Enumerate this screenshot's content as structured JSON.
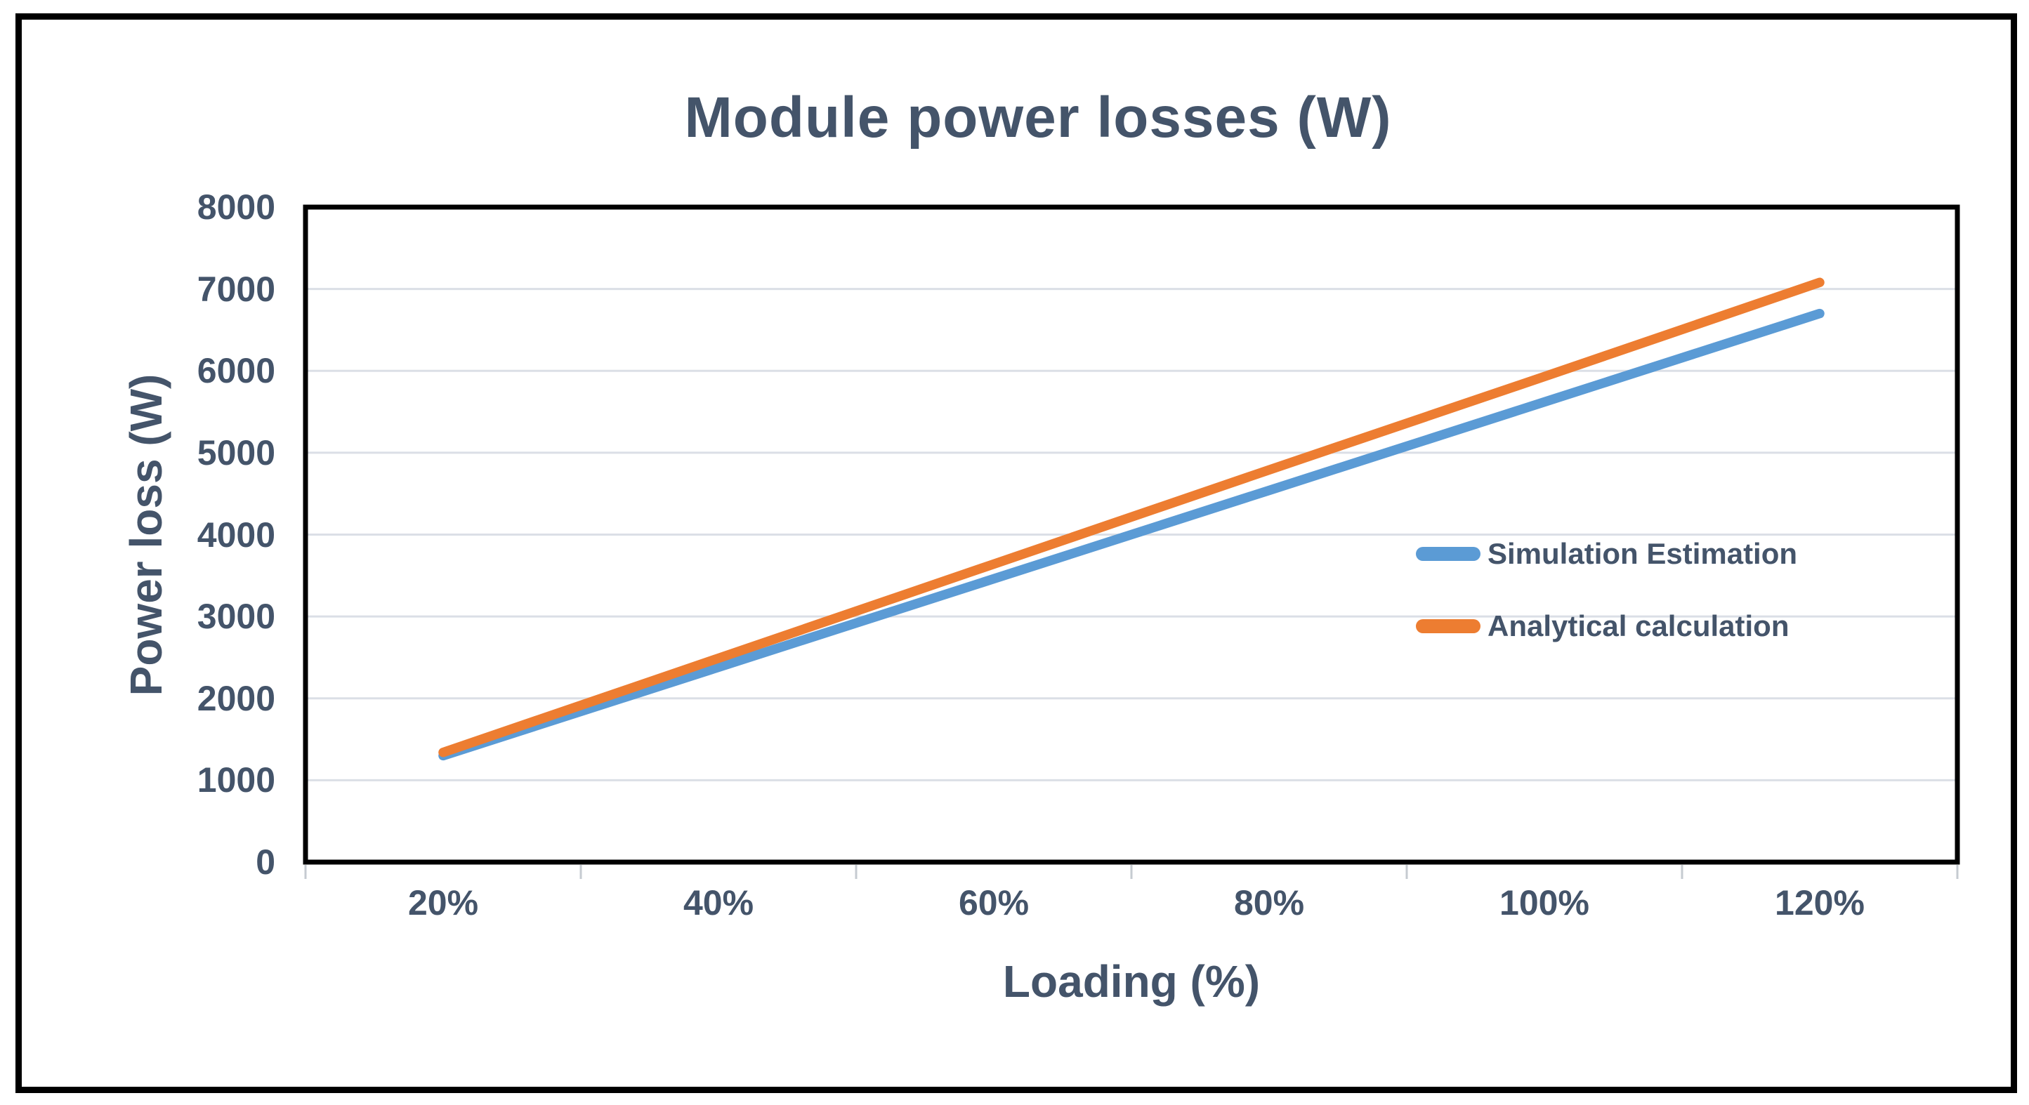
{
  "chart_data": {
    "type": "line",
    "title": "Module power losses (W)",
    "xlabel": "Loading (%)",
    "ylabel": "Power loss (W)",
    "categories": [
      "20%",
      "40%",
      "60%",
      "80%",
      "100%",
      "120%"
    ],
    "series": [
      {
        "name": "Simulation Estimation",
        "color": "#5B9BD5",
        "values": [
          1300,
          2380,
          3460,
          4540,
          5620,
          6700
        ]
      },
      {
        "name": "Analytical calculation",
        "color": "#ED7D31",
        "values": [
          1340,
          2490,
          3640,
          4790,
          5930,
          7080
        ]
      }
    ],
    "ylim": [
      0,
      8000
    ],
    "y_ticks": [
      0,
      1000,
      2000,
      3000,
      4000,
      5000,
      6000,
      7000,
      8000
    ],
    "grid": "horizontal",
    "legend_position": "inside-right",
    "x_tick_marks": "between-categories"
  },
  "colors": {
    "text": "#44546A",
    "gridline": "#DBDFE6",
    "axis": "#000000",
    "tick_mark": "#C6CBD1",
    "plot_border": "#000000",
    "outer_border": "#000000",
    "background": "#FFFFFF"
  }
}
